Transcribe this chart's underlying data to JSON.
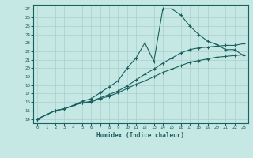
{
  "xlabel": "Humidex (Indice chaleur)",
  "background_color": "#c5e8e4",
  "grid_color": "#aacfcc",
  "line_color": "#1a6060",
  "xlim": [
    -0.5,
    23.5
  ],
  "ylim": [
    13.5,
    27.5
  ],
  "xticks": [
    0,
    1,
    2,
    3,
    4,
    5,
    6,
    7,
    8,
    9,
    10,
    11,
    12,
    13,
    14,
    15,
    16,
    17,
    18,
    19,
    20,
    21,
    22,
    23
  ],
  "yticks": [
    14,
    15,
    16,
    17,
    18,
    19,
    20,
    21,
    22,
    23,
    24,
    25,
    26,
    27
  ],
  "line1_x": [
    0,
    1,
    2,
    3,
    4,
    5,
    6,
    7,
    8,
    9,
    10,
    11,
    12,
    13,
    14,
    15,
    16,
    17,
    18,
    19,
    20,
    21,
    22,
    23
  ],
  "line1_y": [
    14,
    14.5,
    15,
    15.2,
    15.6,
    16.1,
    16.4,
    17.1,
    17.8,
    18.5,
    20.0,
    21.2,
    23.0,
    20.8,
    27.0,
    27.0,
    26.3,
    25.0,
    24.0,
    23.2,
    22.8,
    22.2,
    22.2,
    21.5
  ],
  "line2_x": [
    0,
    2,
    3,
    4,
    5,
    6,
    7,
    8,
    9,
    10,
    11,
    12,
    13,
    14,
    15,
    16,
    17,
    18,
    19,
    20,
    21,
    22,
    23
  ],
  "line2_y": [
    14,
    15,
    15.2,
    15.6,
    15.9,
    16.1,
    16.5,
    16.9,
    17.3,
    17.9,
    18.6,
    19.3,
    19.9,
    20.6,
    21.2,
    21.8,
    22.2,
    22.4,
    22.5,
    22.6,
    22.7,
    22.7,
    22.9
  ],
  "line3_x": [
    0,
    2,
    3,
    4,
    5,
    6,
    7,
    8,
    9,
    10,
    11,
    12,
    13,
    14,
    15,
    16,
    17,
    18,
    19,
    20,
    21,
    22,
    23
  ],
  "line3_y": [
    14,
    15,
    15.2,
    15.6,
    15.9,
    16.0,
    16.4,
    16.7,
    17.1,
    17.6,
    18.1,
    18.5,
    19.0,
    19.5,
    19.9,
    20.3,
    20.7,
    20.9,
    21.1,
    21.3,
    21.4,
    21.5,
    21.6
  ]
}
